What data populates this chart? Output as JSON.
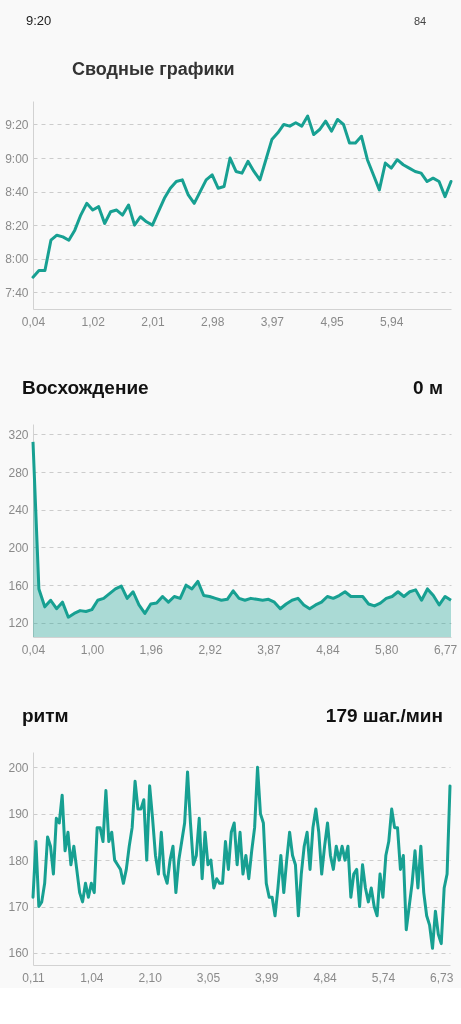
{
  "chart_data": [
    {
      "type": "line",
      "title": "Сводные графики",
      "annotations": [
        "9:20",
        "84"
      ],
      "categories": [
        "0,04",
        null,
        null,
        null,
        null,
        null,
        null,
        null,
        null,
        null,
        "1,02",
        null,
        null,
        null,
        null,
        null,
        null,
        null,
        null,
        null,
        "2,01",
        null,
        null,
        null,
        null,
        null,
        null,
        null,
        null,
        null,
        "2,98",
        null,
        null,
        null,
        null,
        null,
        null,
        null,
        null,
        null,
        "3,97",
        null,
        null,
        null,
        null,
        null,
        null,
        null,
        null,
        null,
        "4,95",
        null,
        null,
        null,
        null,
        null,
        null,
        null,
        null,
        null,
        "5,94",
        null,
        null,
        null,
        null,
        null,
        null,
        null,
        null,
        null,
        null
      ],
      "series": [
        {
          "color": "#17a092",
          "values": [
            469,
            473,
            473,
            491,
            494,
            493,
            491,
            497,
            506,
            513,
            509,
            511,
            501,
            508,
            509,
            506,
            512,
            500,
            505,
            502,
            500,
            508,
            516,
            522,
            526,
            527,
            518,
            513,
            520,
            527,
            530,
            522,
            523,
            540,
            532,
            531,
            538,
            532,
            527,
            539,
            551,
            555,
            560,
            559,
            561,
            559,
            565,
            554,
            557,
            562,
            556,
            563,
            560,
            549,
            549,
            553,
            539,
            530,
            521,
            537,
            534,
            539,
            536,
            534,
            532,
            531,
            526,
            528,
            526,
            517,
            526
          ]
        }
      ],
      "ylim": [
        450,
        574
      ],
      "yticks": [
        {
          "value": 460,
          "label": "7:40"
        },
        {
          "value": 480,
          "label": "8:00"
        },
        {
          "value": 500,
          "label": "8:20"
        },
        {
          "value": 520,
          "label": "8:40"
        },
        {
          "value": 540,
          "label": "9:00"
        },
        {
          "value": 560,
          "label": "9:20"
        }
      ],
      "grid": "y"
    },
    {
      "type": "area",
      "title": "Восхождение",
      "annotations": [
        "0 м"
      ],
      "categories": [
        "0,04",
        null,
        null,
        null,
        null,
        null,
        null,
        null,
        null,
        null,
        "1,00",
        null,
        null,
        null,
        null,
        null,
        null,
        null,
        null,
        null,
        "1,96",
        null,
        null,
        null,
        null,
        null,
        null,
        null,
        null,
        null,
        "2,92",
        null,
        null,
        null,
        null,
        null,
        null,
        null,
        null,
        null,
        "3,87",
        null,
        null,
        null,
        null,
        null,
        null,
        null,
        null,
        null,
        "4,84",
        null,
        null,
        null,
        null,
        null,
        null,
        null,
        null,
        null,
        "5,80",
        null,
        null,
        null,
        null,
        null,
        null,
        null,
        null,
        null,
        "6,77",
        null
      ],
      "series": [
        {
          "color": "#17a092",
          "values": [
            312,
            156,
            137,
            144,
            135,
            142,
            126,
            130,
            133,
            132,
            134,
            144,
            146,
            151,
            156,
            159,
            146,
            153,
            139,
            130,
            140,
            141,
            148,
            142,
            148,
            146,
            160,
            156,
            164,
            149,
            148,
            146,
            144,
            145,
            154,
            146,
            144,
            146,
            145,
            144,
            145,
            142,
            135,
            140,
            144,
            146,
            139,
            135,
            139,
            142,
            148,
            146,
            149,
            153,
            148,
            148,
            148,
            140,
            138,
            141,
            146,
            148,
            153,
            148,
            153,
            155,
            144,
            156,
            149,
            139,
            148,
            144
          ]
        }
      ],
      "ylim": [
        105,
        331
      ],
      "yticks": [
        120,
        160,
        200,
        240,
        280,
        320
      ],
      "grid": "y"
    },
    {
      "type": "line",
      "title": "ритм",
      "annotations": [
        "179 шаг./мин"
      ],
      "categories": [
        "0,11",
        null,
        null,
        null,
        null,
        null,
        null,
        null,
        null,
        null,
        null,
        null,
        null,
        null,
        null,
        null,
        null,
        null,
        null,
        null,
        "1,04",
        null,
        null,
        null,
        null,
        null,
        null,
        null,
        null,
        null,
        null,
        null,
        null,
        null,
        null,
        null,
        null,
        null,
        null,
        null,
        "2,10",
        null,
        null,
        null,
        null,
        null,
        null,
        null,
        null,
        null,
        null,
        null,
        null,
        null,
        null,
        null,
        null,
        null,
        null,
        null,
        "3,05",
        null,
        null,
        null,
        null,
        null,
        null,
        null,
        null,
        null,
        null,
        null,
        null,
        null,
        null,
        null,
        null,
        null,
        null,
        null,
        "3,99",
        null,
        null,
        null,
        null,
        null,
        null,
        null,
        null,
        null,
        null,
        null,
        null,
        null,
        null,
        null,
        null,
        null,
        null,
        null,
        "4,84",
        null,
        null,
        null,
        null,
        null,
        null,
        null,
        null,
        null,
        null,
        null,
        null,
        null,
        null,
        null,
        null,
        null,
        null,
        null,
        "5,74",
        null,
        null,
        null,
        null,
        null,
        null,
        null,
        null,
        null,
        null,
        null,
        null,
        null,
        null,
        null,
        null,
        null,
        null,
        null,
        "6,73",
        null,
        null,
        null
      ],
      "series": [
        {
          "color": "#17a092",
          "values": [
            172,
            184,
            170,
            171,
            175,
            185,
            183,
            177,
            189,
            188,
            194,
            182,
            186,
            179,
            183,
            178,
            173,
            171,
            175,
            172,
            175,
            173,
            187,
            187,
            184,
            195,
            184,
            186,
            180,
            179,
            178,
            175,
            178,
            183,
            187,
            197,
            191,
            191,
            193,
            180,
            196,
            189,
            181,
            177,
            186,
            177,
            175,
            180,
            183,
            173,
            180,
            184,
            188,
            199,
            188,
            179,
            181,
            189,
            176,
            186,
            179,
            180,
            174,
            176,
            175,
            175,
            184,
            178,
            186,
            188,
            179,
            186,
            177,
            181,
            176,
            182,
            187,
            200,
            190,
            188,
            175,
            172,
            172,
            168,
            174,
            181,
            173,
            180,
            186,
            181,
            179,
            168,
            177,
            183,
            186,
            178,
            187,
            191,
            186,
            177,
            183,
            188,
            181,
            178,
            183,
            180,
            183,
            180,
            183,
            172,
            177,
            178,
            170,
            179,
            174,
            171,
            174,
            170,
            168,
            177,
            172,
            181,
            184,
            191,
            187,
            187,
            178,
            181,
            165,
            170,
            175,
            182,
            174,
            183,
            173,
            168,
            166,
            161,
            169,
            164,
            162,
            174,
            177,
            196
          ]
        }
      ],
      "ylim": [
        157.4,
        203.3
      ],
      "yticks": [
        160,
        170,
        180,
        190,
        200
      ],
      "grid": "y"
    }
  ]
}
